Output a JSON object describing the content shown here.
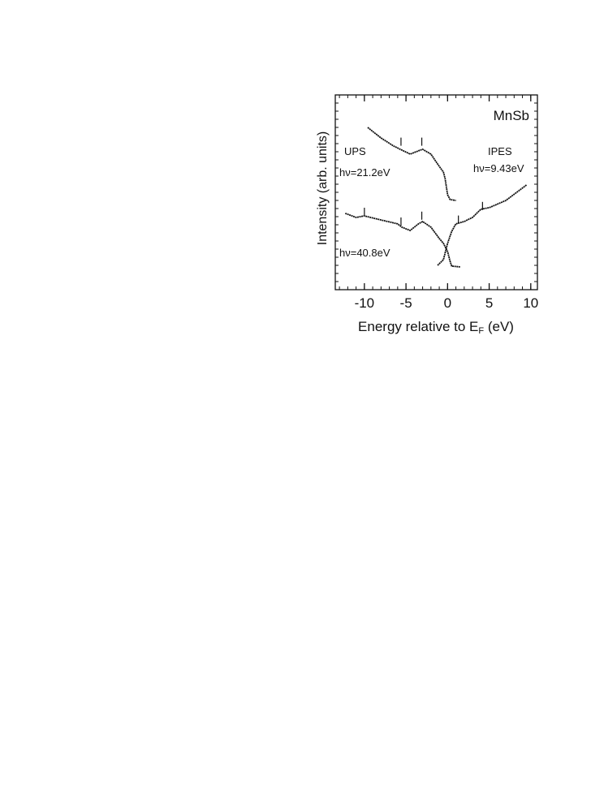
{
  "chart_data": {
    "type": "line",
    "title": "MnSb",
    "x_label": [
      "Energy relative to E",
      "F",
      " (eV)"
    ],
    "y_label": "Intensity (arb. units)",
    "annotations": [
      "UPS",
      "hν=21.2eV",
      "IPES",
      "hν=9.43eV",
      "hν=40.8eV"
    ],
    "xlim": [
      -13.5,
      10.8
    ],
    "xticks": [
      -10,
      -5,
      0,
      5,
      10
    ],
    "ylim": [
      0,
      100
    ],
    "color": "#111111",
    "series": [
      {
        "x": [
          -9.6,
          -8,
          -6.5,
          -5.5,
          -4.5,
          -3.5,
          -3,
          -2,
          -1,
          -0.5,
          -0.3,
          0,
          0.3,
          1.0
        ],
        "values": [
          83.3,
          77.9,
          73.8,
          71.7,
          69.6,
          71.3,
          72.1,
          69.6,
          63.3,
          60.4,
          57.1,
          48.8,
          46.3,
          45.8
        ]
      },
      {
        "x": [
          -12.3,
          -11,
          -10,
          -8,
          -6,
          -5.5,
          -4.5,
          -3.5,
          -3,
          -2,
          -1,
          -0.5,
          0,
          0.3,
          0.5,
          1.5
        ],
        "values": [
          39.2,
          37.1,
          37.9,
          35.8,
          33.8,
          32.1,
          30.4,
          33.8,
          35,
          32.1,
          26.3,
          23.8,
          19.6,
          14.6,
          12.1,
          11.7
        ]
      },
      {
        "x": [
          -1.2,
          -0.5,
          0,
          0.5,
          1.0,
          2,
          3,
          4,
          5,
          7,
          9.5
        ],
        "values": [
          12.5,
          15.4,
          23.8,
          30,
          33.8,
          35,
          37.1,
          41.3,
          42.1,
          45.8,
          53.8
        ]
      }
    ],
    "peak_markers": {
      "x": [
        -5.6,
        -3.1,
        -10,
        -5.6,
        -3.1,
        1.3,
        4.2
      ],
      "values": [
        76,
        76,
        40,
        35,
        38,
        36,
        43
      ]
    }
  }
}
